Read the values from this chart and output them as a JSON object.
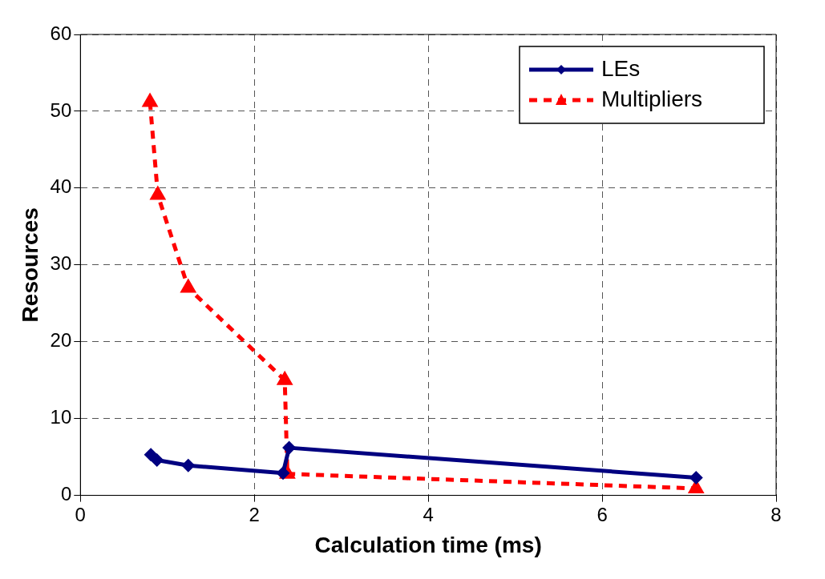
{
  "chart_data": {
    "type": "line",
    "xlabel": "Calculation time (ms)",
    "ylabel": "Resources",
    "xlim": [
      0,
      8
    ],
    "xticks": [
      0,
      2,
      4,
      6,
      8
    ],
    "ylim": [
      0,
      60
    ],
    "yticks": [
      0,
      10,
      20,
      30,
      40,
      50,
      60
    ],
    "grid": true,
    "legend": "top right",
    "series": [
      {
        "name": "LEs",
        "color": "#000080",
        "marker": "diamond",
        "line_style": "solid",
        "x": [
          0.81,
          0.88,
          1.24,
          2.33,
          2.4,
          7.08
        ],
        "values": [
          5.3,
          4.6,
          3.9,
          2.9,
          6.2,
          2.3
        ]
      },
      {
        "name": "Multipliers",
        "color": "#ff0000",
        "marker": "triangle",
        "line_style": "dashed",
        "x": [
          0.8,
          0.89,
          1.24,
          2.35,
          2.38,
          7.08
        ],
        "values": [
          51.2,
          39.1,
          27,
          15,
          2.8,
          0.9
        ]
      }
    ]
  }
}
